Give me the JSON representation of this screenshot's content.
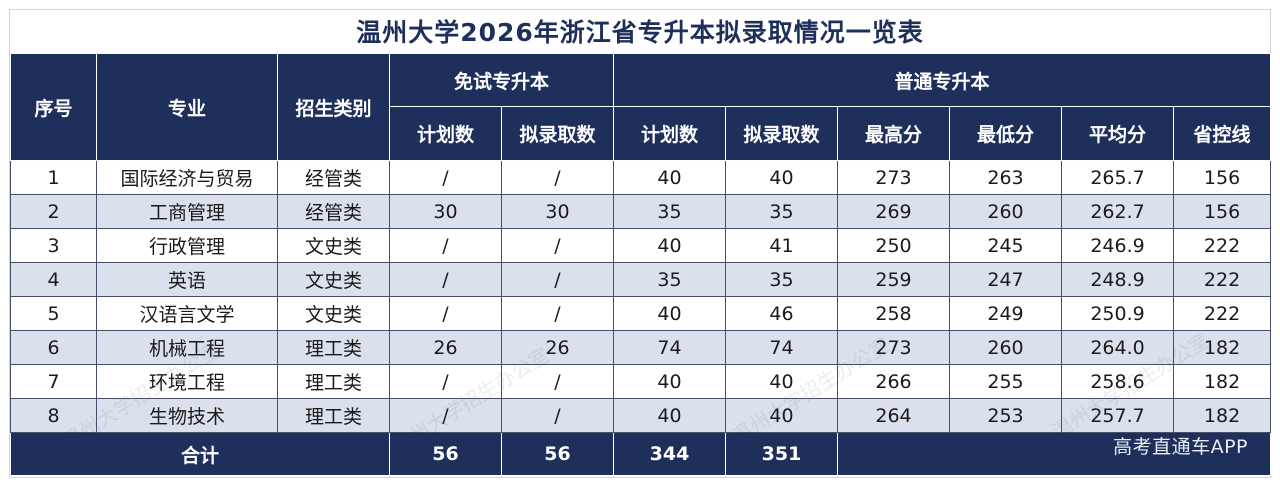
{
  "title": "温州大学2026年浙江省专升本拟录取情况一览表",
  "header": {
    "index": "序号",
    "major": "专业",
    "category": "招生类别",
    "exempt_group": "免试专升本",
    "regular_group": "普通专升本",
    "exempt_cols": [
      "计划数",
      "拟录取数"
    ],
    "regular_cols": [
      "计划数",
      "拟录取数",
      "最高分",
      "最低分",
      "平均分",
      "省控线"
    ]
  },
  "rows": [
    {
      "index": "1",
      "major": "国际经济与贸易",
      "category": "经管类",
      "ex_plan": "/",
      "ex_admit": "/",
      "plan": "40",
      "admit": "40",
      "max": "273",
      "min": "263",
      "avg": "265.7",
      "line": "156"
    },
    {
      "index": "2",
      "major": "工商管理",
      "category": "经管类",
      "ex_plan": "30",
      "ex_admit": "30",
      "plan": "35",
      "admit": "35",
      "max": "269",
      "min": "260",
      "avg": "262.7",
      "line": "156"
    },
    {
      "index": "3",
      "major": "行政管理",
      "category": "文史类",
      "ex_plan": "/",
      "ex_admit": "/",
      "plan": "40",
      "admit": "41",
      "max": "250",
      "min": "245",
      "avg": "246.9",
      "line": "222"
    },
    {
      "index": "4",
      "major": "英语",
      "category": "文史类",
      "ex_plan": "/",
      "ex_admit": "/",
      "plan": "35",
      "admit": "35",
      "max": "259",
      "min": "247",
      "avg": "248.9",
      "line": "222"
    },
    {
      "index": "5",
      "major": "汉语言文学",
      "category": "文史类",
      "ex_plan": "/",
      "ex_admit": "/",
      "plan": "40",
      "admit": "46",
      "max": "258",
      "min": "249",
      "avg": "250.9",
      "line": "222"
    },
    {
      "index": "6",
      "major": "机械工程",
      "category": "理工类",
      "ex_plan": "26",
      "ex_admit": "26",
      "plan": "74",
      "admit": "74",
      "max": "273",
      "min": "260",
      "avg": "264.0",
      "line": "182"
    },
    {
      "index": "7",
      "major": "环境工程",
      "category": "理工类",
      "ex_plan": "/",
      "ex_admit": "/",
      "plan": "40",
      "admit": "40",
      "max": "266",
      "min": "255",
      "avg": "258.6",
      "line": "182"
    },
    {
      "index": "8",
      "major": "生物技术",
      "category": "理工类",
      "ex_plan": "/",
      "ex_admit": "/",
      "plan": "40",
      "admit": "40",
      "max": "264",
      "min": "253",
      "avg": "257.7",
      "line": "182"
    }
  ],
  "total": {
    "label": "合计",
    "ex_plan": "56",
    "ex_admit": "56",
    "plan": "344",
    "admit": "351"
  },
  "app_mark": "高考直通车APP",
  "watermark": "温州大学招生办公室",
  "colors": {
    "header_bg": "#1f2f5c",
    "alt_row_bg": "#dbe1ec",
    "title_color": "#1f2f5c"
  }
}
